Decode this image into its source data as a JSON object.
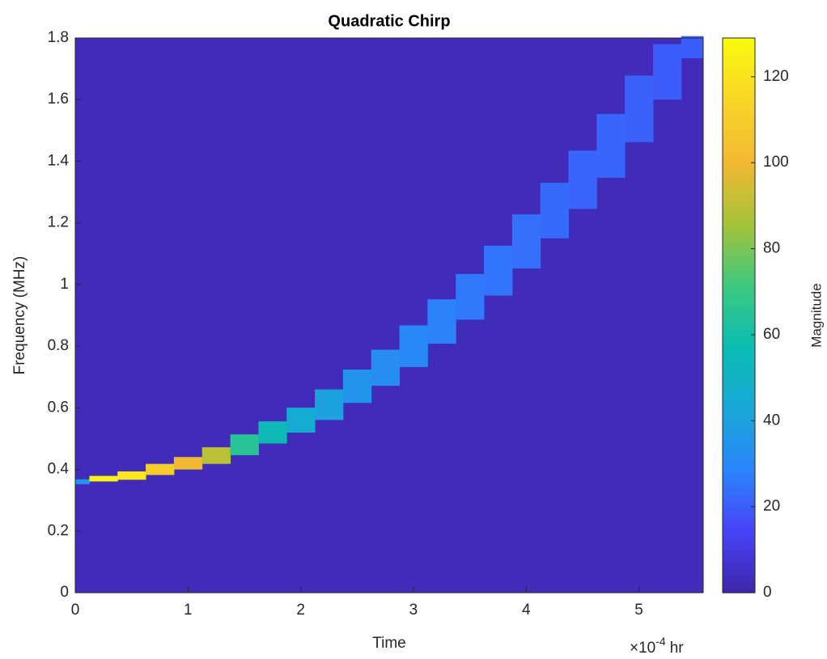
{
  "chart_data": {
    "type": "spectrogram",
    "title": "Quadratic Chirp",
    "xlabel": "Time",
    "ylabel": "Frequency (MHz)",
    "x_multiplier": "×10",
    "x_exponent": "-4",
    "x_unit": "hr",
    "xlim": [
      0,
      5.57
    ],
    "xticks": [
      0,
      1,
      2,
      3,
      4,
      5
    ],
    "ylim": [
      0,
      1.8
    ],
    "yticks": [
      0,
      0.2,
      0.4,
      0.6,
      0.8,
      1,
      1.2,
      1.4,
      1.6,
      1.8
    ],
    "colorbar_label": "Magnitude",
    "clim": [
      0,
      129
    ],
    "cticks": [
      0,
      20,
      40,
      60,
      80,
      100,
      120
    ],
    "colormap": [
      "#3e26a8",
      "#4743f8",
      "#2b85fb",
      "#18a8d8",
      "#0bbcb1",
      "#3fc97f",
      "#a6c339",
      "#f3b932",
      "#f9d628",
      "#f9fb0e"
    ],
    "background_magnitude": 3,
    "x": [
      0,
      0.25,
      0.5,
      0.75,
      1,
      1.25,
      1.5,
      1.75,
      2,
      2.25,
      2.5,
      2.75,
      3,
      3.25,
      3.5,
      3.75,
      4,
      4.25,
      4.5,
      4.75,
      5,
      5.25,
      5.5
    ],
    "frequency": [
      0.36,
      0.37,
      0.38,
      0.4,
      0.42,
      0.445,
      0.48,
      0.52,
      0.56,
      0.61,
      0.67,
      0.73,
      0.8,
      0.88,
      0.96,
      1.045,
      1.14,
      1.24,
      1.34,
      1.45,
      1.57,
      1.69,
      1.77
    ],
    "magnitude": [
      35,
      125,
      122,
      110,
      100,
      90,
      65,
      55,
      45,
      40,
      35,
      32,
      30,
      28,
      26,
      25,
      24,
      23,
      22,
      22,
      21,
      20,
      20
    ]
  }
}
